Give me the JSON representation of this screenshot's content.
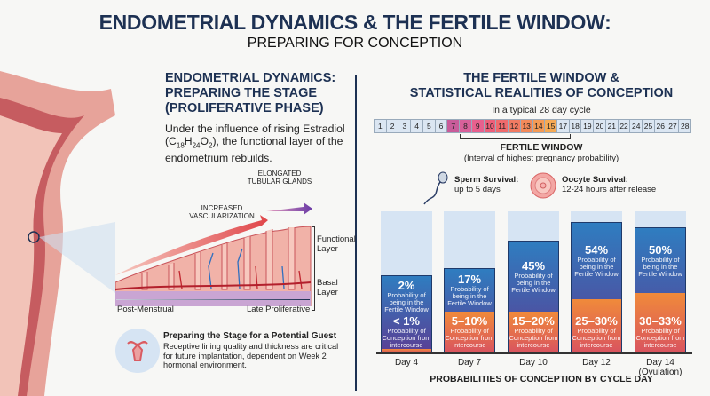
{
  "header": {
    "title": "ENDOMETRIAL DYNAMICS & THE FERTILE WINDOW:",
    "subtitle": "PREPARING FOR CONCEPTION"
  },
  "left": {
    "heading": [
      "ENDOMETRIAL DYNAMICS:",
      "PREPARING THE STAGE",
      "(PROLIFERATIVE PHASE)"
    ],
    "body_pre": "Under the influence of rising Estradiol (C",
    "formula": {
      "c": "18",
      "h": "24",
      "o": "2"
    },
    "body_post": "), the functional layer of the endometrium rebuilds.",
    "labels": {
      "vasc": [
        "INCREASED",
        "VASCULARIZATION"
      ],
      "glands": [
        "ELONGATED",
        "TUBULAR GLANDS"
      ],
      "functional": [
        "Functional",
        "Layer"
      ],
      "basal": [
        "Basal",
        "Layer"
      ],
      "start": "Post-Menstrual",
      "end": "Late Proliferative"
    },
    "guest": {
      "title": "Preparing the Stage for a Potential Guest",
      "body": "Receptive lining quality and thickness are critical for future implantation, dependent on Week 2 hormonal environment."
    }
  },
  "right": {
    "heading": [
      "THE FERTILE WINDOW &",
      "STATISTICAL REALITIES OF CONCEPTION"
    ],
    "cycle_caption": "In a typical 28 day cycle",
    "days": [
      "1",
      "2",
      "3",
      "4",
      "5",
      "6",
      "7",
      "8",
      "9",
      "10",
      "11",
      "12",
      "13",
      "14",
      "15",
      "17",
      "18",
      "19",
      "20",
      "21",
      "22",
      "24",
      "25",
      "26",
      "27",
      "28"
    ],
    "fertile_days": [
      "7",
      "8",
      "9",
      "10",
      "11",
      "12",
      "13",
      "14",
      "15"
    ],
    "fertile_title": "FERTILE WINDOW",
    "fertile_sub": "(Interval of highest pregnancy probability)",
    "sperm": {
      "title": "Sperm Survival:",
      "text": "up to 5 days"
    },
    "oocyte": {
      "title": "Oocyte Survival:",
      "text": "12-24 hours after release"
    }
  },
  "chart_data": {
    "type": "bar",
    "title": "PROBABILITIES OF CONCEPTION BY CYCLE DAY",
    "categories": [
      "Day 4",
      "Day 7",
      "Day 10",
      "Day 12",
      "Day 14"
    ],
    "category_notes": [
      "",
      "",
      "",
      "",
      "(Ovulation)"
    ],
    "series": [
      {
        "name": "Probability of being in the Fertile Window",
        "labels": [
          "2%",
          "17%",
          "45%",
          "54%",
          "50%"
        ],
        "color": "#3b6db3"
      },
      {
        "name": "Probability of Conception from intercourse",
        "labels": [
          "< 1%",
          "5–10%",
          "15–20%",
          "25–30%",
          "30–33%"
        ],
        "color": "#ef7d3c"
      }
    ],
    "fw_caption": [
      "Probability of",
      "being in the",
      "Fertile Window"
    ],
    "conc_caption": [
      "Probability of",
      "Conception from",
      "intercourse"
    ]
  }
}
